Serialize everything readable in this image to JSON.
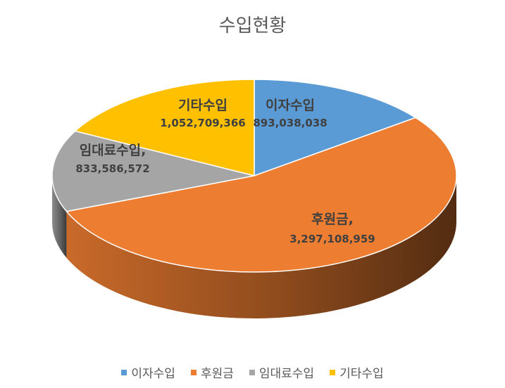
{
  "chart_data": {
    "type": "pie",
    "title": "수입현황",
    "series": [
      {
        "name": "",
        "slices": [
          {
            "label": "이자수입",
            "value": 893038038,
            "value_text": "893,038,038",
            "color": "#5B9BD5",
            "name_text": "이자수입"
          },
          {
            "label": "후원금",
            "value": 3297108959,
            "value_text": "3,297,108,959",
            "color": "#ED7D31",
            "name_text": "후원금,"
          },
          {
            "label": "임대료수입",
            "value": 833586572,
            "value_text": "833,586,572",
            "color": "#A5A5A5",
            "name_text": "임대료수입,"
          },
          {
            "label": "기타수입",
            "value": 1052709366,
            "value_text": "1,052,709,366",
            "color": "#FFC000",
            "name_text": "기타수입"
          }
        ]
      }
    ],
    "legend": {
      "position": "bottom",
      "items": [
        "이자수입",
        "후원금",
        "임대료수입",
        "기타수입"
      ]
    },
    "style": "3d-pie"
  }
}
